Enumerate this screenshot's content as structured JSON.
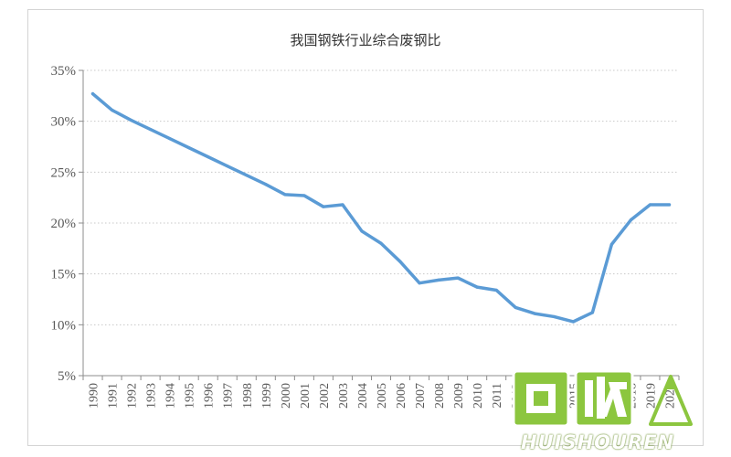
{
  "chart_data": {
    "type": "line",
    "title": "我国钢铁行业综合废钢比",
    "xlabel": "",
    "ylabel": "",
    "x": [
      "1990",
      "1991",
      "1992",
      "1993",
      "1994",
      "1995",
      "1996",
      "1997",
      "1998",
      "1999",
      "2000",
      "2001",
      "2002",
      "2003",
      "2004",
      "2005",
      "2006",
      "2007",
      "2008",
      "2009",
      "2010",
      "2011",
      "2012",
      "2013",
      "2014",
      "2015",
      "2016",
      "2017",
      "2018",
      "2019",
      "2020"
    ],
    "series": [
      {
        "color": "#5b9bd5",
        "values": [
          32.7,
          31.1,
          30.1,
          29.2,
          28.3,
          27.4,
          26.5,
          25.6,
          24.7,
          23.8,
          22.8,
          22.7,
          21.6,
          21.8,
          19.2,
          18.0,
          16.2,
          14.1,
          14.4,
          14.6,
          13.7,
          13.4,
          11.7,
          11.1,
          10.8,
          10.3,
          11.2,
          17.9,
          20.3,
          21.8,
          21.8
        ]
      }
    ],
    "ylim": [
      5,
      35
    ],
    "y_ticks": [
      5,
      10,
      15,
      20,
      25,
      30,
      35
    ],
    "y_tick_labels": [
      "5%",
      "10%",
      "15%",
      "20%",
      "25%",
      "30%",
      "35%"
    ],
    "grid": true,
    "legend": "none"
  },
  "watermark": {
    "glyphs": "回收",
    "word": "HUISHOUREN",
    "color": "#8cc63f"
  }
}
